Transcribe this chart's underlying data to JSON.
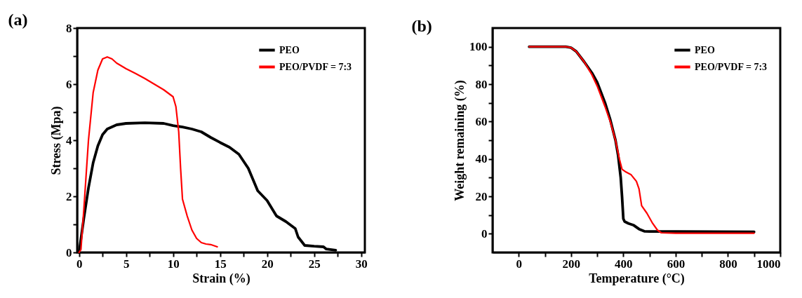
{
  "chart_data": [
    {
      "type": "line",
      "title": "(a)",
      "xlabel": "Strain (%)",
      "ylabel": "Stress (Mpa)",
      "xlim": [
        -0.2,
        30.4
      ],
      "ylim": [
        0,
        8
      ],
      "xticks": [
        0,
        {
          "value": 2.5,
          "label": null
        },
        5,
        {
          "value": 7.5,
          "label": null
        },
        10,
        {
          "value": 12.5,
          "label": null
        },
        15,
        {
          "value": 17.5,
          "label": null
        },
        20,
        {
          "value": 22.5,
          "label": null
        },
        25,
        {
          "value": 27.5,
          "label": null
        },
        30
      ],
      "yticks": [
        0,
        {
          "value": 1,
          "label": null
        },
        2,
        {
          "value": 3,
          "label": null
        },
        4,
        {
          "value": 5,
          "label": null
        },
        6,
        {
          "value": 7,
          "label": null
        },
        8
      ],
      "grid": false,
      "legend": "top right",
      "line_style": "solid",
      "marker": "none",
      "series": [
        {
          "name": "PEO",
          "color": "#000000",
          "x": [
            0,
            0.5,
            1,
            1.5,
            2,
            2.5,
            3,
            4,
            5,
            7,
            9,
            10,
            11,
            12,
            13,
            14,
            15,
            16,
            17,
            18,
            19,
            20,
            21,
            22,
            23,
            23.3,
            24,
            25,
            26,
            26.3,
            27.3
          ],
          "values": [
            0,
            1.2,
            2.3,
            3.2,
            3.8,
            4.2,
            4.4,
            4.55,
            4.6,
            4.62,
            4.6,
            4.52,
            4.47,
            4.4,
            4.3,
            4.1,
            3.92,
            3.75,
            3.5,
            3.0,
            2.2,
            1.85,
            1.3,
            1.1,
            0.85,
            0.55,
            0.25,
            0.22,
            0.2,
            0.12,
            0.08
          ]
        },
        {
          "name": "PEO/PVDF = 7:3",
          "color": "#ff0000",
          "x": [
            0,
            0.2,
            0.5,
            1,
            1.5,
            2,
            2.5,
            3,
            3.5,
            4,
            5,
            6,
            7,
            8,
            9,
            10,
            10.3,
            10.6,
            10.8,
            11,
            11.5,
            12,
            12.5,
            13,
            13.5,
            14,
            14.7
          ],
          "values": [
            0,
            0.1,
            1.5,
            4,
            5.7,
            6.5,
            6.9,
            6.97,
            6.9,
            6.75,
            6.55,
            6.38,
            6.2,
            6.0,
            5.8,
            5.55,
            5.2,
            4.3,
            3.0,
            1.9,
            1.3,
            0.8,
            0.5,
            0.35,
            0.3,
            0.28,
            0.2
          ]
        }
      ]
    },
    {
      "type": "line",
      "title": "(b)",
      "xlabel": "Temperature  (°C)",
      "ylabel": "Weight remaining (%)",
      "xlim": [
        -100,
        1000
      ],
      "ylim": [
        -10,
        110
      ],
      "xticks": [
        0,
        {
          "value": 100,
          "label": null
        },
        200,
        {
          "value": 300,
          "label": null
        },
        400,
        {
          "value": 500,
          "label": null
        },
        600,
        {
          "value": 700,
          "label": null
        },
        800,
        {
          "value": 900,
          "label": null
        },
        1000
      ],
      "yticks": [
        0,
        {
          "value": 10,
          "label": null
        },
        20,
        {
          "value": 30,
          "label": null
        },
        40,
        {
          "value": 50,
          "label": null
        },
        60,
        {
          "value": 70,
          "label": null
        },
        80,
        {
          "value": 90,
          "label": null
        },
        100
      ],
      "grid": false,
      "legend": "top right",
      "line_style": "solid",
      "marker": "none",
      "series": [
        {
          "name": "PEO",
          "color": "#000000",
          "x": [
            40,
            180,
            200,
            220,
            250,
            280,
            300,
            330,
            350,
            370,
            380,
            390,
            395,
            400,
            405,
            420,
            440,
            460,
            480,
            500,
            600,
            900
          ],
          "values": [
            100,
            100,
            99.5,
            97.5,
            92,
            86,
            81,
            70,
            61,
            50,
            42,
            30,
            20,
            8,
            6.5,
            5.5,
            4.5,
            2.5,
            1.3,
            1.2,
            1.2,
            1
          ]
        },
        {
          "name": "PEO/PVDF = 7:3",
          "color": "#ff0000",
          "x": [
            40,
            180,
            200,
            220,
            250,
            280,
            300,
            330,
            350,
            370,
            385,
            395,
            410,
            430,
            450,
            460,
            470,
            490,
            510,
            530,
            545,
            600,
            900
          ],
          "values": [
            100,
            100,
            99.5,
            97.5,
            92,
            85,
            79,
            68,
            60,
            50,
            40,
            34.5,
            33,
            31.5,
            28,
            24,
            15,
            11,
            6,
            2,
            0.5,
            0.3,
            0.3
          ]
        }
      ]
    }
  ]
}
